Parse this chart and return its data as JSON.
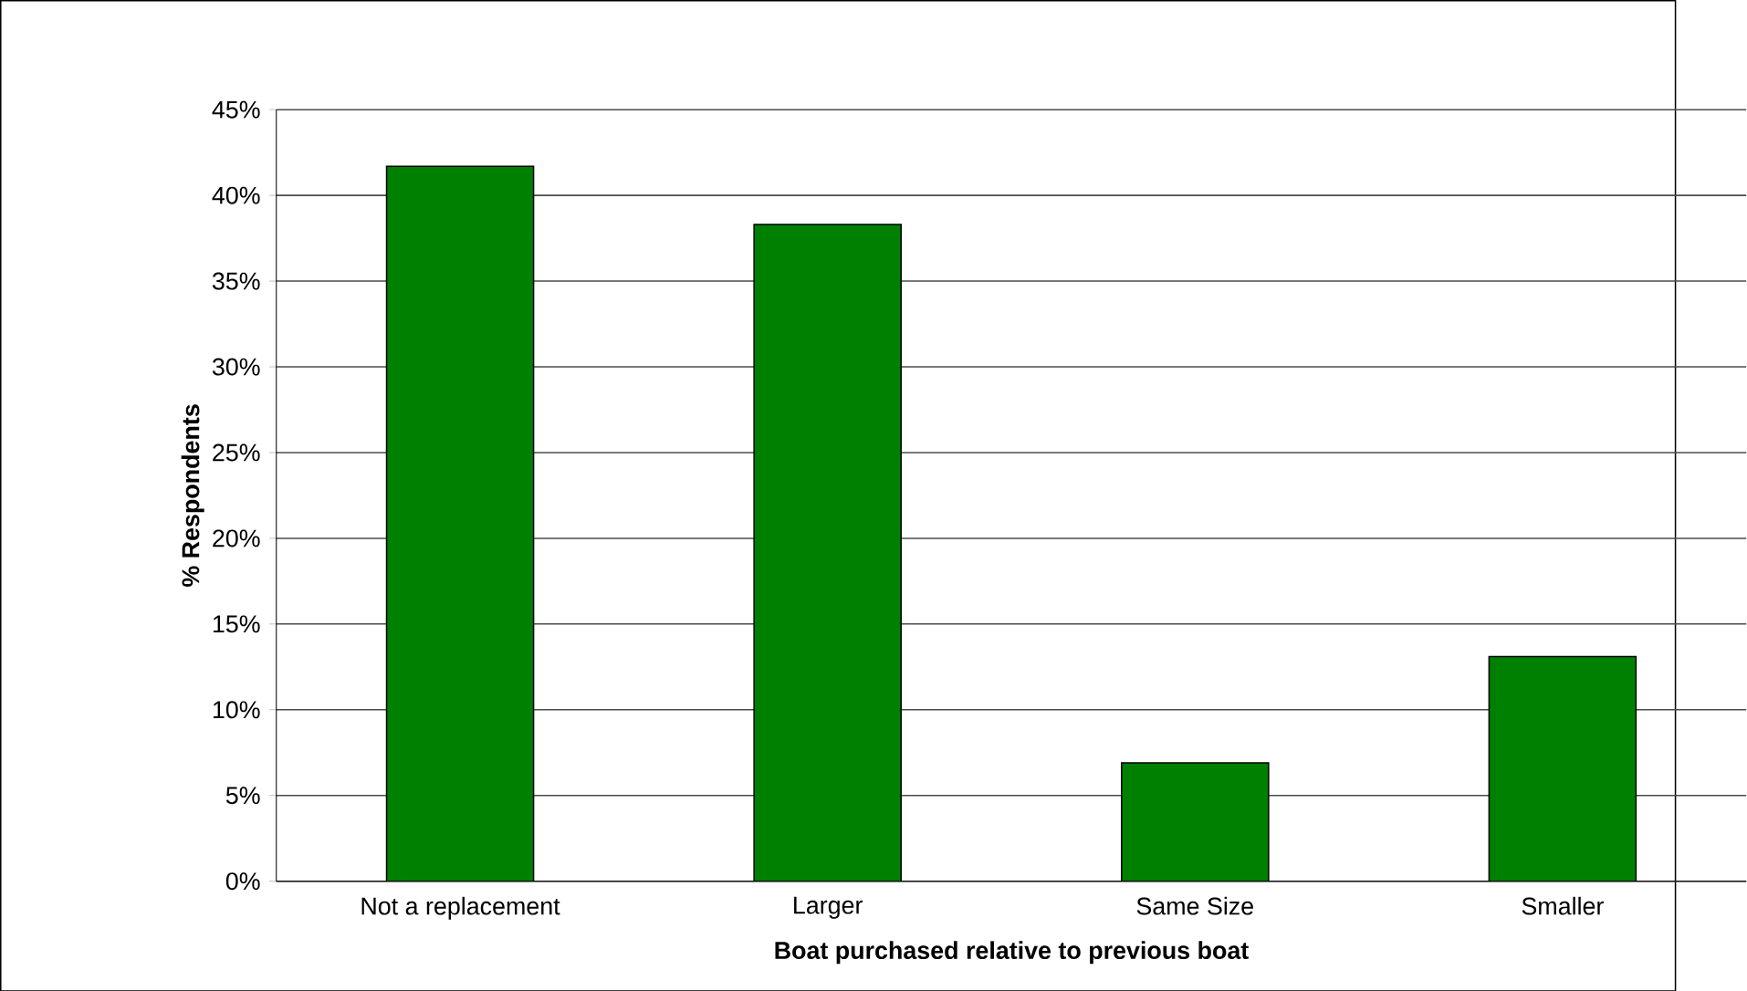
{
  "chart_data": {
    "type": "bar",
    "xlabel": "Boat purchased relative to previous boat",
    "ylabel": "% Respondents",
    "categories": [
      "Not a replacement",
      "Larger",
      "Same Size",
      "Smaller"
    ],
    "values": [
      41.7,
      38.3,
      6.9,
      13.1
    ],
    "color": "#008000",
    "ylim": [
      0,
      45
    ],
    "yticks": [
      {
        "value": 0,
        "label": "0%"
      },
      {
        "value": 5,
        "label": "5%"
      },
      {
        "value": 10,
        "label": "10%"
      },
      {
        "value": 15,
        "label": "15%"
      },
      {
        "value": 20,
        "label": "20%"
      },
      {
        "value": 25,
        "label": "25%"
      },
      {
        "value": 30,
        "label": "30%"
      },
      {
        "value": 35,
        "label": "35%"
      },
      {
        "value": 40,
        "label": "40%"
      },
      {
        "value": 45,
        "label": "45%"
      }
    ],
    "grid": "y"
  }
}
